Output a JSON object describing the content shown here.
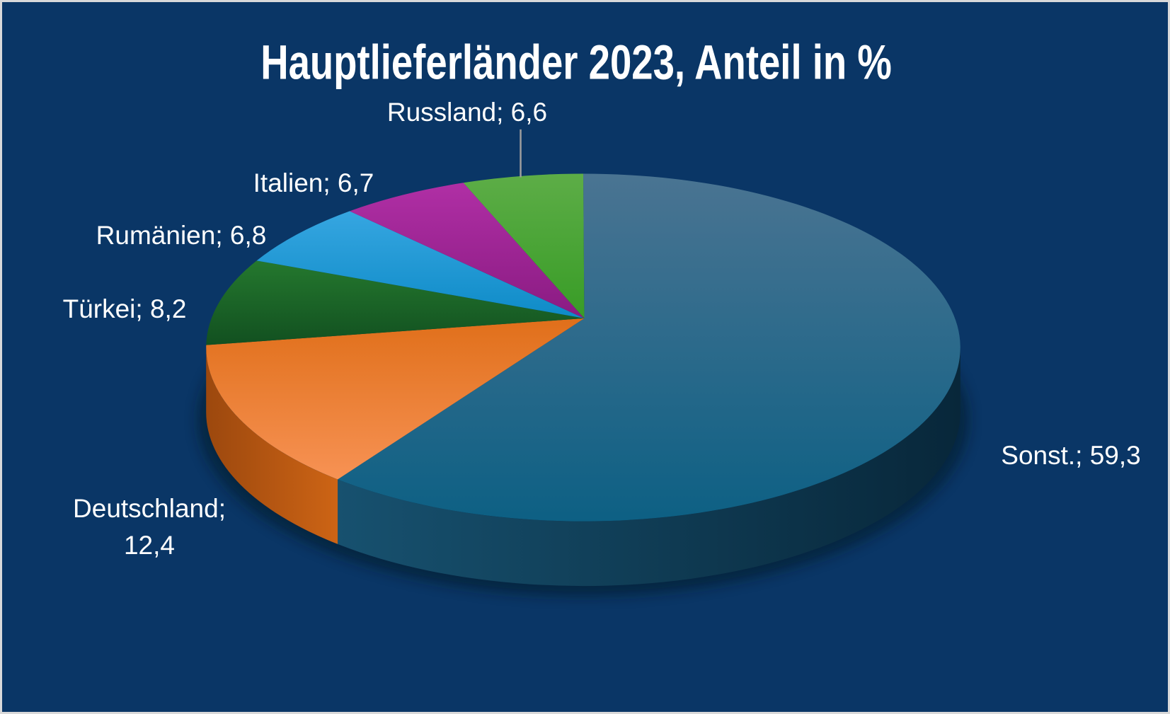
{
  "page": {
    "background_color": "#0A3666",
    "frame_color": "#D9D9D9"
  },
  "chart_data": {
    "type": "pie",
    "style": "3d-perspective",
    "title": "Hauptlieferländer 2023, Anteil in %",
    "value_unit": "%",
    "legend": "none",
    "labels": "outside",
    "title_color": "#FFFFFF",
    "label_color": "#FFFFFF",
    "leader_line_color": "#9E9E9E",
    "slices": [
      {
        "name": "Sonst.",
        "value": 59.3,
        "label": "Sonst.; 59,3",
        "top_gradient": [
          "#4A7492",
          "#0D6084"
        ],
        "side_gradient": [
          "#17516F",
          "#08273A"
        ]
      },
      {
        "name": "Deutschland",
        "value": 12.4,
        "label": "Deutschland; 12,4",
        "top_gradient": [
          "#E06F1A",
          "#F79254"
        ],
        "side_gradient": [
          "#9C480E",
          "#CD6415"
        ]
      },
      {
        "name": "Türkei",
        "value": 8.2,
        "label": "Türkei; 8,2",
        "top_gradient": [
          "#24782E",
          "#125020"
        ],
        "side_gradient": [
          "#0E3D15",
          "#155A1F"
        ]
      },
      {
        "name": "Rumänien",
        "value": 6.8,
        "label": "Rumänien; 6,8",
        "top_gradient": [
          "#36A6E1",
          "#0E8BC7"
        ]
      },
      {
        "name": "Italien",
        "value": 6.7,
        "label": "Italien; 6,7",
        "top_gradient": [
          "#B02FA5",
          "#8A1B82"
        ]
      },
      {
        "name": "Russland",
        "value": 6.6,
        "label": "Russland; 6,6",
        "top_gradient": [
          "#5DAD47",
          "#389C26"
        ]
      }
    ]
  }
}
